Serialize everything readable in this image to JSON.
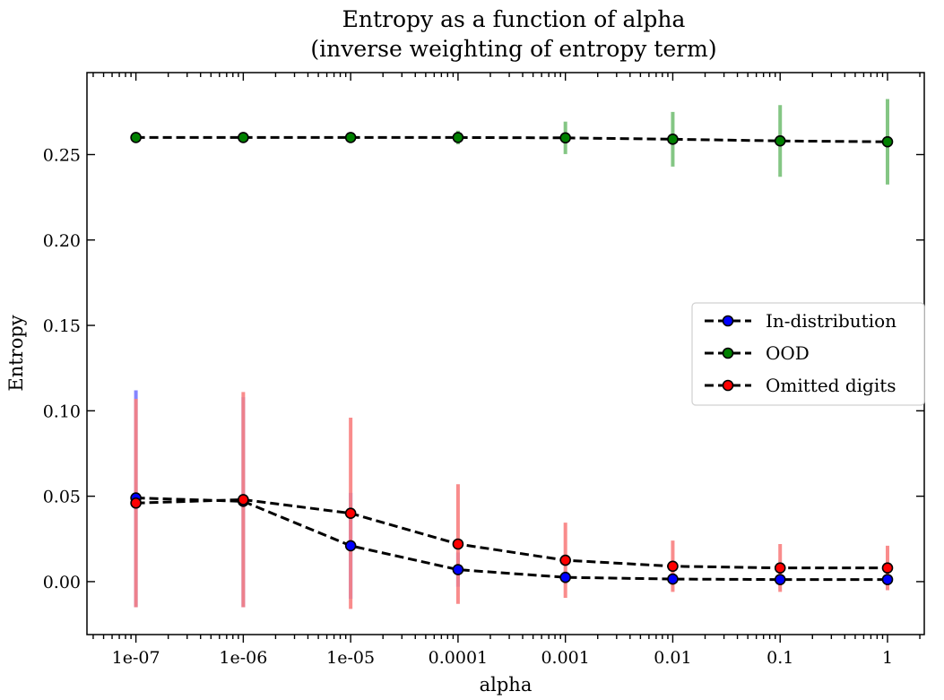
{
  "chart_data": {
    "type": "line",
    "title": "Entropy as a function of alpha",
    "subtitle": "(inverse weighting of entropy term)",
    "xlabel": "alpha",
    "ylabel": "Entropy",
    "x_scale": "log",
    "x": [
      1e-07,
      1e-06,
      1e-05,
      0.0001,
      0.001,
      0.01,
      0.1,
      1
    ],
    "x_tick_labels": [
      "1e-07",
      "1e-06",
      "1e-05",
      "0.0001",
      "0.001",
      "0.01",
      "0.1",
      "1"
    ],
    "xlim": [
      3.5e-08,
      2.2
    ],
    "ylim": [
      -0.031,
      0.298
    ],
    "y_ticks": [
      0.0,
      0.05,
      0.1,
      0.15,
      0.2,
      0.25
    ],
    "y_tick_labels": [
      "0.00",
      "0.05",
      "0.10",
      "0.15",
      "0.20",
      "0.25"
    ],
    "grid": false,
    "legend_position": "center-right",
    "series": [
      {
        "name": "In-distribution",
        "marker_color": "#0000ff",
        "errorbar_color": "#7777ff",
        "values": [
          0.049,
          0.047,
          0.021,
          0.007,
          0.0025,
          0.0015,
          0.0012,
          0.0012
        ],
        "err_low": [
          0.064,
          0.062,
          0.031,
          0.01,
          0.004,
          0.003,
          0.002,
          0.002
        ],
        "err_high": [
          0.063,
          0.061,
          0.031,
          0.01,
          0.004,
          0.003,
          0.002,
          0.002
        ]
      },
      {
        "name": "OOD",
        "marker_color": "#008000",
        "errorbar_color": "#77c077",
        "values": [
          0.26,
          0.26,
          0.26,
          0.26,
          0.2598,
          0.259,
          0.258,
          0.2575
        ],
        "err_low": [
          0.001,
          0.001,
          0.001,
          0.004,
          0.0095,
          0.016,
          0.021,
          0.025
        ],
        "err_high": [
          0.001,
          0.001,
          0.001,
          0.004,
          0.0095,
          0.016,
          0.021,
          0.025
        ]
      },
      {
        "name": "Omitted digits",
        "marker_color": "#ff0000",
        "errorbar_color": "#f88080",
        "values": [
          0.046,
          0.048,
          0.04,
          0.022,
          0.0125,
          0.009,
          0.008,
          0.008
        ],
        "err_low": [
          0.061,
          0.063,
          0.056,
          0.035,
          0.022,
          0.015,
          0.014,
          0.013
        ],
        "err_high": [
          0.061,
          0.063,
          0.056,
          0.035,
          0.022,
          0.015,
          0.014,
          0.013
        ]
      }
    ]
  }
}
